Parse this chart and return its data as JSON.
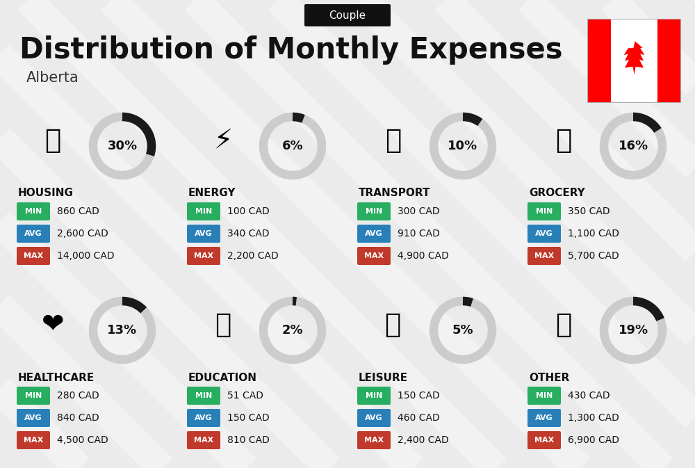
{
  "title": "Distribution of Monthly Expenses",
  "subtitle": "Alberta",
  "tag": "Couple",
  "bg_color": "#ebebeb",
  "categories": [
    {
      "name": "HOUSING",
      "pct": 30,
      "min_val": "860 CAD",
      "avg_val": "2,600 CAD",
      "max_val": "14,000 CAD",
      "col": 0,
      "row": 0
    },
    {
      "name": "ENERGY",
      "pct": 6,
      "min_val": "100 CAD",
      "avg_val": "340 CAD",
      "max_val": "2,200 CAD",
      "col": 1,
      "row": 0
    },
    {
      "name": "TRANSPORT",
      "pct": 10,
      "min_val": "300 CAD",
      "avg_val": "910 CAD",
      "max_val": "4,900 CAD",
      "col": 2,
      "row": 0
    },
    {
      "name": "GROCERY",
      "pct": 16,
      "min_val": "350 CAD",
      "avg_val": "1,100 CAD",
      "max_val": "5,700 CAD",
      "col": 3,
      "row": 0
    },
    {
      "name": "HEALTHCARE",
      "pct": 13,
      "min_val": "280 CAD",
      "avg_val": "840 CAD",
      "max_val": "4,500 CAD",
      "col": 0,
      "row": 1
    },
    {
      "name": "EDUCATION",
      "pct": 2,
      "min_val": "51 CAD",
      "avg_val": "150 CAD",
      "max_val": "810 CAD",
      "col": 1,
      "row": 1
    },
    {
      "name": "LEISURE",
      "pct": 5,
      "min_val": "150 CAD",
      "avg_val": "460 CAD",
      "max_val": "2,400 CAD",
      "col": 2,
      "row": 1
    },
    {
      "name": "OTHER",
      "pct": 19,
      "min_val": "430 CAD",
      "avg_val": "1,300 CAD",
      "max_val": "6,900 CAD",
      "col": 3,
      "row": 1
    }
  ],
  "min_color": "#27ae60",
  "avg_color": "#2980b9",
  "max_color": "#c0392b",
  "ring_color_filled": "#1a1a1a",
  "ring_color_empty": "#cccccc",
  "title_fontsize": 30,
  "subtitle_fontsize": 15,
  "tag_fontsize": 11,
  "cat_fontsize": 11,
  "val_fontsize": 10
}
